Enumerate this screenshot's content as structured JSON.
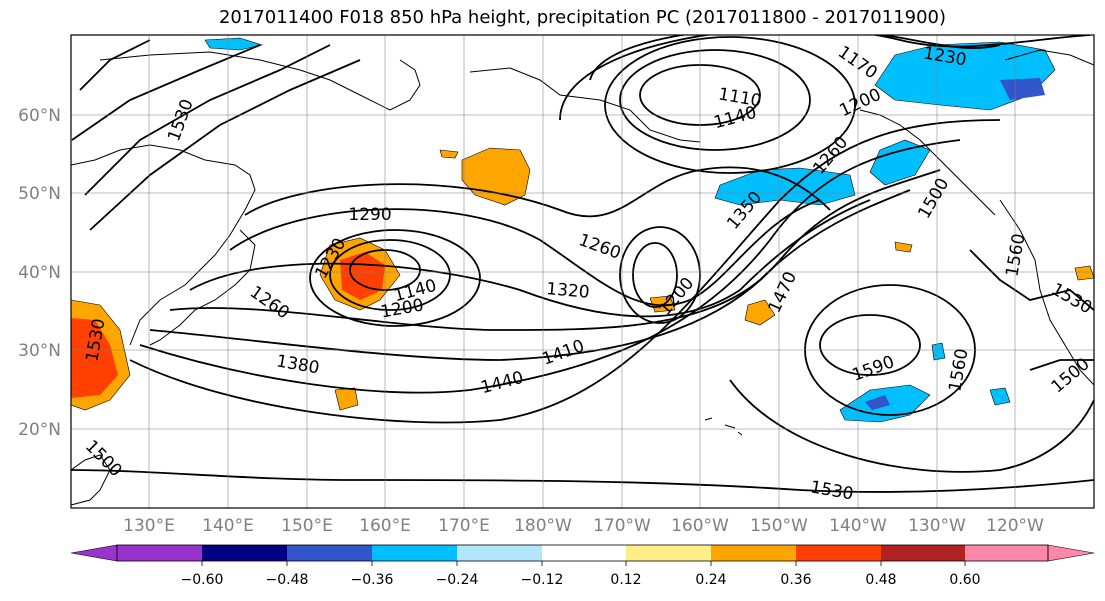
{
  "title": "2017011400 F018 850 hPa height, precipitation PC (2017011800 - 2017011900)",
  "map": {
    "lat_labels": [
      "60°N",
      "50°N",
      "40°N",
      "30°N",
      "20°N"
    ],
    "lon_labels": [
      "130°E",
      "140°E",
      "150°E",
      "160°E",
      "170°E",
      "180°W",
      "170°W",
      "160°W",
      "150°W",
      "140°W",
      "130°W",
      "120°W"
    ],
    "contour_labels": [
      {
        "text": "1530",
        "rot": -70
      },
      {
        "text": "1110",
        "rot": 10
      },
      {
        "text": "1140",
        "rot": -15
      },
      {
        "text": "1170",
        "rot": 35
      },
      {
        "text": "1230",
        "rot": 10
      },
      {
        "text": "1200",
        "rot": -25
      },
      {
        "text": "1260",
        "rot": -50
      },
      {
        "text": "1290",
        "rot": 0
      },
      {
        "text": "1230",
        "rot": -60
      },
      {
        "text": "1260",
        "rot": 35
      },
      {
        "text": "1200",
        "rot": -10
      },
      {
        "text": "1140",
        "rot": -15
      },
      {
        "text": "1260",
        "rot": 20
      },
      {
        "text": "1320",
        "rot": 5
      },
      {
        "text": "1200",
        "rot": -50
      },
      {
        "text": "1350",
        "rot": -50
      },
      {
        "text": "1500",
        "rot": -60
      },
      {
        "text": "1560",
        "rot": -80
      },
      {
        "text": "1470",
        "rot": -65
      },
      {
        "text": "1530",
        "rot": 30
      },
      {
        "text": "1380",
        "rot": 10
      },
      {
        "text": "1410",
        "rot": -20
      },
      {
        "text": "1440",
        "rot": -15
      },
      {
        "text": "1590",
        "rot": -20
      },
      {
        "text": "1560",
        "rot": -80
      },
      {
        "text": "1500",
        "rot": 45
      },
      {
        "text": "1530",
        "rot": 10
      },
      {
        "text": "1500",
        "rot": -40
      },
      {
        "text": "1530",
        "rot": -80
      }
    ]
  },
  "colorbar": {
    "colors": [
      "#9933cc",
      "#000080",
      "#3355cc",
      "#00bfff",
      "#b3e5fc",
      "#ffffff",
      "#ffee88",
      "#ffa500",
      "#ff4000",
      "#b22222",
      "#ff88aa"
    ],
    "tick_labels": [
      "−0.60",
      "−0.48",
      "−0.36",
      "−0.24",
      "−0.12",
      "0.12",
      "0.24",
      "0.36",
      "0.48",
      "0.60"
    ]
  }
}
